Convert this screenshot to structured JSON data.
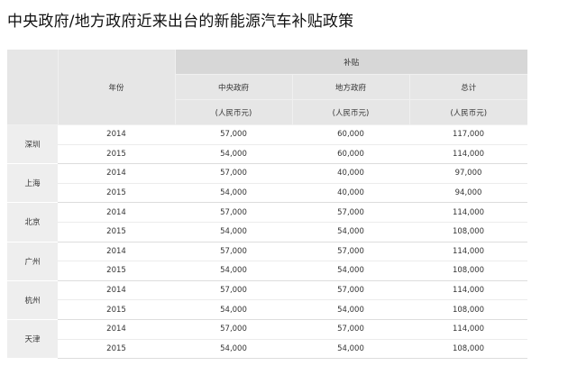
{
  "title": "中央政府/地方政府近来出台的新能源汽车补贴政策",
  "table": {
    "year_header": "年份",
    "subsidy_header": "补贴",
    "columns": [
      {
        "label": "中央政府",
        "unit": "(人民币元)"
      },
      {
        "label": "地方政府",
        "unit": "(人民币元)"
      },
      {
        "label": "总计",
        "unit": "(人民币元)"
      }
    ],
    "groups": [
      {
        "city": "深圳",
        "rows": [
          {
            "year": "2014",
            "central": "57,000",
            "local": "60,000",
            "total": "117,000"
          },
          {
            "year": "2015",
            "central": "54,000",
            "local": "60,000",
            "total": "114,000"
          }
        ]
      },
      {
        "city": "上海",
        "rows": [
          {
            "year": "2014",
            "central": "57,000",
            "local": "40,000",
            "total": "97,000"
          },
          {
            "year": "2015",
            "central": "54,000",
            "local": "40,000",
            "total": "94,000"
          }
        ]
      },
      {
        "city": "北京",
        "rows": [
          {
            "year": "2014",
            "central": "57,000",
            "local": "57,000",
            "total": "114,000"
          },
          {
            "year": "2015",
            "central": "54,000",
            "local": "54,000",
            "total": "108,000"
          }
        ]
      },
      {
        "city": "广州",
        "rows": [
          {
            "year": "2014",
            "central": "57,000",
            "local": "57,000",
            "total": "114,000"
          },
          {
            "year": "2015",
            "central": "54,000",
            "local": "54,000",
            "total": "108,000"
          }
        ]
      },
      {
        "city": "杭州",
        "rows": [
          {
            "year": "2014",
            "central": "57,000",
            "local": "57,000",
            "total": "114,000"
          },
          {
            "year": "2015",
            "central": "54,000",
            "local": "54,000",
            "total": "108,000"
          }
        ]
      },
      {
        "city": "天津",
        "rows": [
          {
            "year": "2014",
            "central": "57,000",
            "local": "57,000",
            "total": "114,000"
          },
          {
            "year": "2015",
            "central": "54,000",
            "local": "54,000",
            "total": "108,000"
          }
        ]
      }
    ]
  },
  "colors": {
    "header_dark": "#d7d7d7",
    "header_light": "#e6e6e6",
    "city_cell": "#eeeeee"
  }
}
